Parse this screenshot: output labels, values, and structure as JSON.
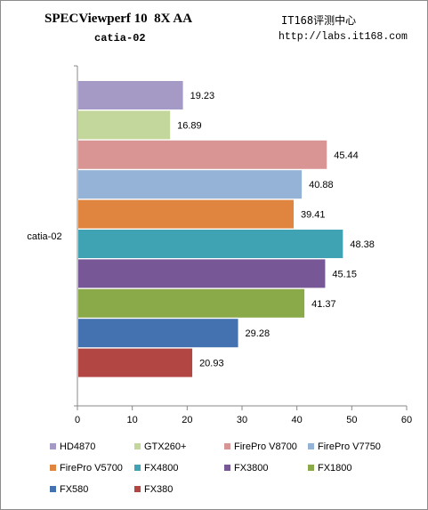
{
  "header": {
    "title": "SPECViewperf 10  8X AA",
    "subtitle": "catia-02",
    "brand": "IT168评测中心",
    "url": "http://labs.it168.com"
  },
  "chart_data": {
    "type": "bar",
    "orientation": "horizontal",
    "categories": [
      "catia-02"
    ],
    "series": [
      {
        "name": "HD4870",
        "values": [
          19.23
        ],
        "color": "#a59ac6"
      },
      {
        "name": "GTX260+",
        "values": [
          16.89
        ],
        "color": "#c3d69b"
      },
      {
        "name": "FirePro V8700",
        "values": [
          45.44
        ],
        "color": "#d99594"
      },
      {
        "name": "FirePro V7750",
        "values": [
          40.88
        ],
        "color": "#95b3d7"
      },
      {
        "name": "FirePro V5700",
        "values": [
          39.41
        ],
        "color": "#e0853f"
      },
      {
        "name": "FX4800",
        "values": [
          48.38
        ],
        "color": "#3fa3b4"
      },
      {
        "name": "FX3800",
        "values": [
          45.15
        ],
        "color": "#775796"
      },
      {
        "name": "FX1800",
        "values": [
          41.37
        ],
        "color": "#8aaa4a"
      },
      {
        "name": "FX580",
        "values": [
          29.28
        ],
        "color": "#4472b0"
      },
      {
        "name": "FX380",
        "values": [
          20.93
        ],
        "color": "#b24643"
      }
    ],
    "xlim": [
      0,
      60
    ],
    "xticks": [
      "0",
      "10",
      "20",
      "30",
      "40",
      "50",
      "60"
    ],
    "grid": false,
    "legend": "bottom"
  }
}
